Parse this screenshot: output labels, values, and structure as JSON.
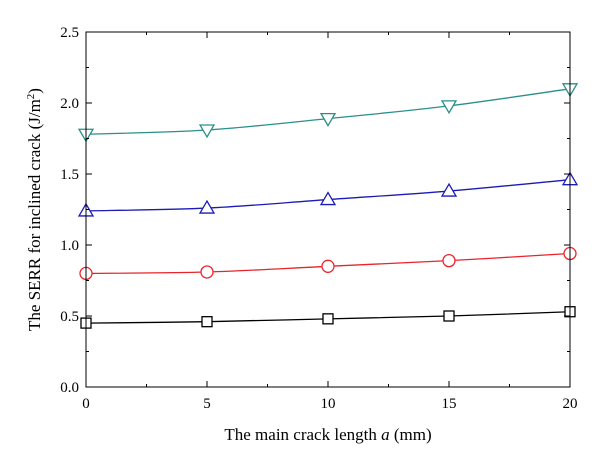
{
  "chart_data": {
    "type": "line",
    "title": "",
    "xlabel": {
      "prefix": "The main crack length ",
      "variable": "a",
      "suffix": " (mm)"
    },
    "ylabel": {
      "main": "The SERR for inclined crack (J/m",
      "sup": "2",
      "close": ")"
    },
    "xlim": [
      0,
      20
    ],
    "ylim": [
      0,
      2.5
    ],
    "xticks": [
      "0",
      "5",
      "10",
      "15",
      "20"
    ],
    "yticks": [
      "0.0",
      "0.5",
      "1.0",
      "1.5",
      "2.0",
      "2.5"
    ],
    "x": [
      0,
      5,
      10,
      15,
      20
    ],
    "series": [
      {
        "marker": "square",
        "color": "#000000",
        "values": [
          0.45,
          0.46,
          0.48,
          0.5,
          0.53
        ]
      },
      {
        "marker": "circle",
        "color": "#e8252a",
        "values": [
          0.8,
          0.81,
          0.85,
          0.89,
          0.94
        ]
      },
      {
        "marker": "triangle-up",
        "color": "#1b1bb5",
        "values": [
          1.24,
          1.26,
          1.32,
          1.38,
          1.46
        ]
      },
      {
        "marker": "triangle-down",
        "color": "#2a8f8a",
        "values": [
          1.78,
          1.81,
          1.89,
          1.98,
          2.1
        ]
      }
    ],
    "grid": false,
    "legend": "none"
  }
}
